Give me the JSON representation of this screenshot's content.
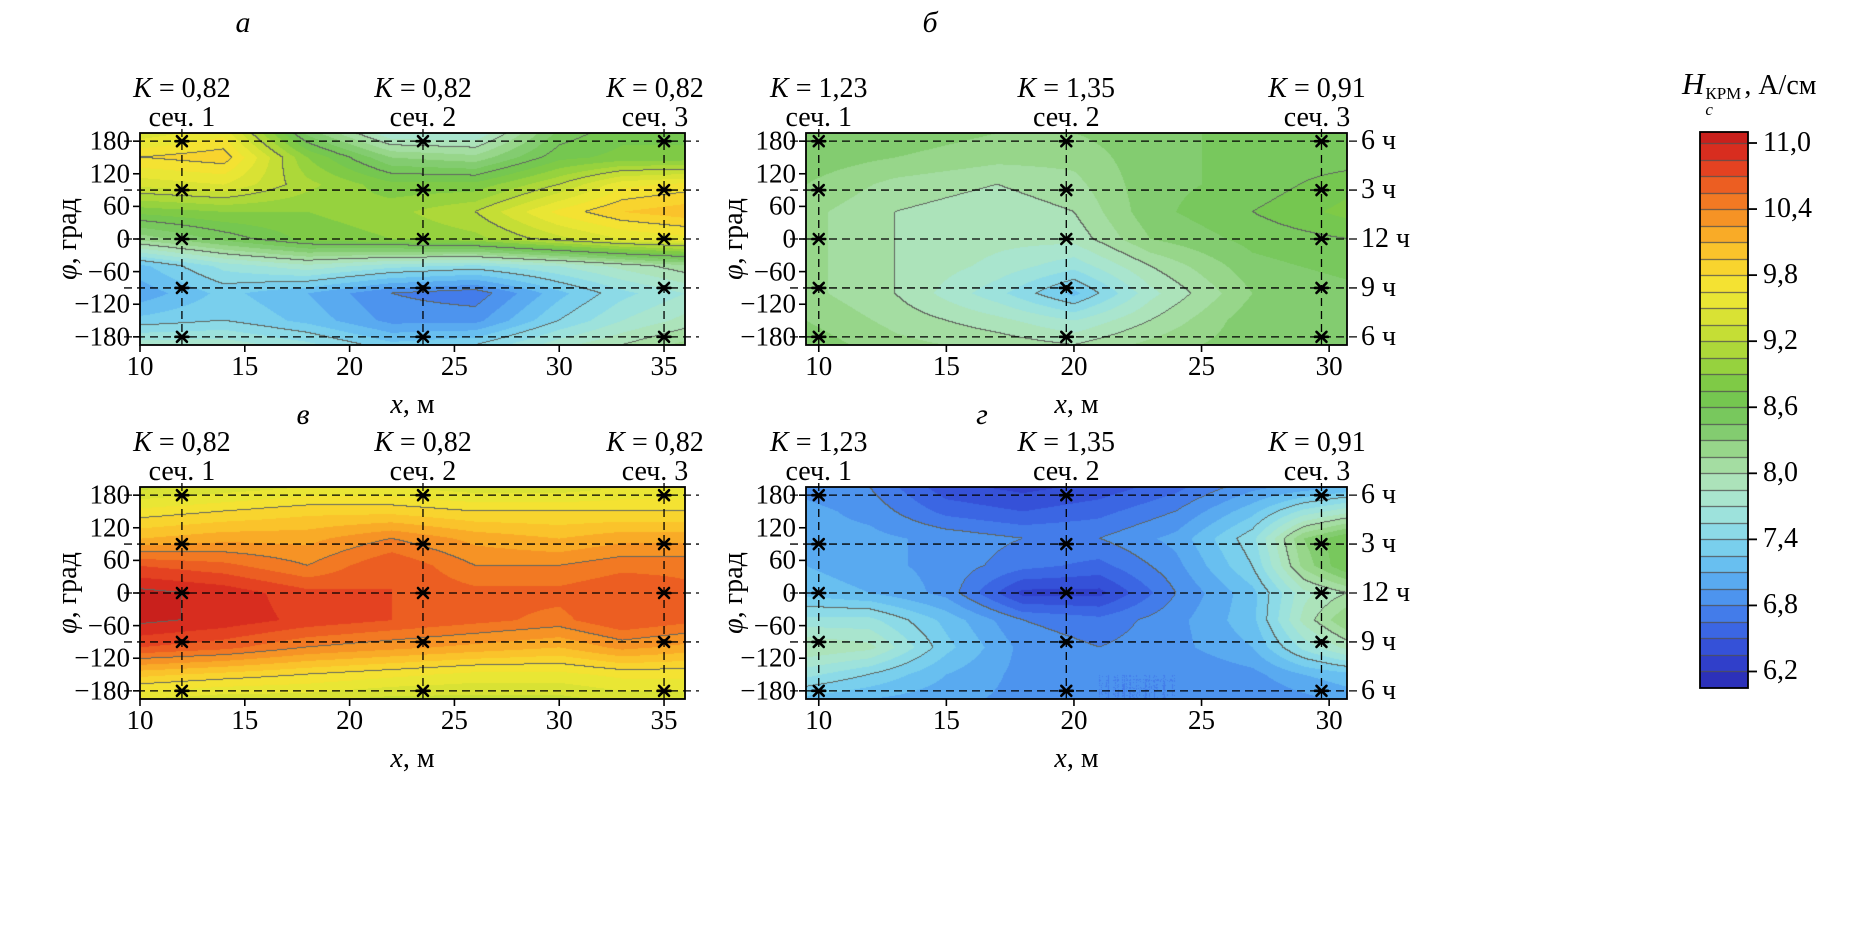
{
  "colorbar": {
    "title": {
      "symbol": "H",
      "sup": "КРМ",
      "sub": "c",
      "units": ", А/см"
    },
    "tick_labels": [
      "11,0",
      "10,4",
      "9,8",
      "9,2",
      "8,6",
      "8,0",
      "7,4",
      "6,8",
      "6,2"
    ],
    "tick_values": [
      11.0,
      10.4,
      9.8,
      9.2,
      8.6,
      8.0,
      7.4,
      6.8,
      6.2
    ],
    "range": [
      6.05,
      11.1
    ],
    "band_step": 0.15,
    "contour_step": 0.6,
    "colormap_stops": [
      [
        6.05,
        [
          42,
          42,
          178
        ]
      ],
      [
        6.35,
        [
          50,
          70,
          210
        ]
      ],
      [
        6.65,
        [
          62,
          112,
          232
        ]
      ],
      [
        6.95,
        [
          82,
          160,
          240
        ]
      ],
      [
        7.25,
        [
          112,
          202,
          240
        ]
      ],
      [
        7.55,
        [
          150,
          224,
          228
        ]
      ],
      [
        7.85,
        [
          176,
          230,
          198
        ]
      ],
      [
        8.15,
        [
          160,
          218,
          150
        ]
      ],
      [
        8.45,
        [
          122,
          200,
          100
        ]
      ],
      [
        8.75,
        [
          116,
          198,
          74
        ]
      ],
      [
        9.05,
        [
          162,
          214,
          58
        ]
      ],
      [
        9.35,
        [
          208,
          224,
          52
        ]
      ],
      [
        9.65,
        [
          242,
          232,
          52
        ]
      ],
      [
        9.95,
        [
          250,
          206,
          44
        ]
      ],
      [
        10.25,
        [
          248,
          160,
          38
        ]
      ],
      [
        10.55,
        [
          240,
          108,
          34
        ]
      ],
      [
        10.85,
        [
          224,
          52,
          32
        ]
      ],
      [
        11.1,
        [
          198,
          30,
          28
        ]
      ]
    ]
  },
  "chart_data": [
    {
      "type": "heatmap",
      "panel_label": "а",
      "xlabel": "x, м",
      "ylabel": "φ, град",
      "x_ticks": [
        10,
        15,
        20,
        25,
        30,
        35
      ],
      "y_ticks": [
        180,
        120,
        60,
        0,
        -60,
        -120,
        -180
      ],
      "x_range": [
        10,
        36
      ],
      "phi_range": [
        -195,
        195
      ],
      "marker_phis": [
        180,
        90,
        0,
        -90,
        -180
      ],
      "hour_labels": [
        "6 ч",
        "3 ч",
        "12 ч",
        "9 ч",
        "6 ч"
      ],
      "show_hour_labels": false,
      "sections": [
        {
          "label": "сеч. 1",
          "k": "K = 0,82",
          "x": 12
        },
        {
          "label": "сеч. 2",
          "k": "K = 0,82",
          "x": 23.5
        },
        {
          "label": "сеч. 3",
          "k": "K = 0,82",
          "x": 35
        }
      ],
      "grid_x": [
        10,
        14,
        18,
        22,
        26,
        30,
        33,
        36
      ],
      "grid_phi": [
        195,
        150,
        100,
        50,
        0,
        -50,
        -100,
        -150,
        -195
      ],
      "values": [
        [
          9.4,
          9.6,
          8.4,
          7.7,
          7.7,
          8.5,
          8.7,
          8.7
        ],
        [
          9.8,
          9.9,
          8.9,
          8.3,
          8.2,
          8.7,
          8.8,
          8.8
        ],
        [
          9.4,
          9.5,
          9.1,
          8.8,
          8.8,
          9.2,
          9.6,
          9.7
        ],
        [
          8.8,
          8.9,
          8.9,
          9.0,
          9.2,
          9.7,
          9.95,
          10.05
        ],
        [
          8.2,
          8.5,
          8.8,
          8.9,
          9.0,
          9.3,
          9.5,
          9.6
        ],
        [
          7.2,
          7.6,
          7.8,
          7.6,
          7.5,
          7.7,
          7.9,
          8.1
        ],
        [
          7.0,
          7.3,
          7.1,
          6.8,
          6.7,
          7.2,
          7.5,
          7.7
        ],
        [
          7.3,
          7.4,
          7.2,
          6.9,
          6.9,
          7.4,
          7.7,
          7.9
        ],
        [
          7.8,
          7.8,
          7.6,
          7.3,
          7.4,
          7.8,
          8.0,
          8.2
        ]
      ]
    },
    {
      "type": "heatmap",
      "panel_label": "б",
      "xlabel": "x, м",
      "ylabel": "φ, град",
      "x_ticks": [
        10,
        15,
        20,
        25,
        30
      ],
      "y_ticks": [
        180,
        120,
        60,
        0,
        -60,
        -120,
        -180
      ],
      "x_range": [
        9.5,
        30.7
      ],
      "phi_range": [
        -195,
        195
      ],
      "marker_phis": [
        180,
        90,
        0,
        -90,
        -180
      ],
      "hour_labels": [
        "6 ч",
        "3 ч",
        "12 ч",
        "9 ч",
        "6 ч"
      ],
      "show_hour_labels": true,
      "sections": [
        {
          "label": "сеч. 1",
          "k": "K = 1,23",
          "x": 10
        },
        {
          "label": "сеч. 2",
          "k": "K = 1,35",
          "x": 19.7
        },
        {
          "label": "сеч. 3",
          "k": "K = 0,91",
          "x": 29.7
        }
      ],
      "grid_x": [
        9.5,
        13,
        17,
        20,
        23,
        27,
        30.7
      ],
      "grid_phi": [
        195,
        150,
        100,
        50,
        0,
        -50,
        -100,
        -150,
        -195
      ],
      "values": [
        [
          8.4,
          8.4,
          8.3,
          8.3,
          8.4,
          8.5,
          8.5
        ],
        [
          8.4,
          8.3,
          8.2,
          8.2,
          8.4,
          8.5,
          8.5
        ],
        [
          8.3,
          8.1,
          8.0,
          8.1,
          8.4,
          8.5,
          8.7
        ],
        [
          8.2,
          8.0,
          7.9,
          8.0,
          8.4,
          8.6,
          8.8
        ],
        [
          8.2,
          8.0,
          7.9,
          7.9,
          8.3,
          8.5,
          8.6
        ],
        [
          8.2,
          8.0,
          7.8,
          7.6,
          8.0,
          8.4,
          8.5
        ],
        [
          8.2,
          8.0,
          7.6,
          7.2,
          7.8,
          8.3,
          8.4
        ],
        [
          8.3,
          8.1,
          7.9,
          7.7,
          8.0,
          8.4,
          8.4
        ],
        [
          8.4,
          8.2,
          8.1,
          8.0,
          8.2,
          8.4,
          8.4
        ]
      ]
    },
    {
      "type": "heatmap",
      "panel_label": "в",
      "xlabel": "x, м",
      "ylabel": "φ, град",
      "x_ticks": [
        10,
        15,
        20,
        25,
        30,
        35
      ],
      "y_ticks": [
        180,
        120,
        60,
        0,
        -60,
        -120,
        -180
      ],
      "x_range": [
        10,
        36
      ],
      "phi_range": [
        -195,
        195
      ],
      "marker_phis": [
        180,
        90,
        0,
        -90,
        -180
      ],
      "hour_labels": [
        "6 ч",
        "3 ч",
        "12 ч",
        "9 ч",
        "6 ч"
      ],
      "show_hour_labels": false,
      "sections": [
        {
          "label": "сеч. 1",
          "k": "K = 0,82",
          "x": 12
        },
        {
          "label": "сеч. 2",
          "k": "K = 0,82",
          "x": 23.5
        },
        {
          "label": "сеч. 3",
          "k": "K = 0,82",
          "x": 35
        }
      ],
      "grid_x": [
        10,
        14,
        18,
        22,
        26,
        30,
        33,
        36
      ],
      "grid_phi": [
        195,
        150,
        100,
        50,
        0,
        -50,
        -100,
        -150,
        -195
      ],
      "values": [
        [
          9.3,
          9.4,
          9.5,
          9.5,
          9.4,
          9.4,
          9.5,
          9.5
        ],
        [
          9.7,
          9.8,
          9.9,
          9.9,
          9.8,
          9.8,
          9.8,
          9.8
        ],
        [
          10.1,
          10.2,
          10.2,
          10.4,
          10.2,
          10.1,
          10.2,
          10.2
        ],
        [
          10.7,
          10.6,
          10.4,
          10.7,
          10.4,
          10.4,
          10.5,
          10.5
        ],
        [
          11.05,
          10.95,
          10.75,
          10.7,
          10.6,
          10.6,
          10.7,
          10.6
        ],
        [
          11.05,
          10.95,
          10.8,
          10.7,
          10.6,
          10.5,
          10.7,
          10.6
        ],
        [
          10.7,
          10.6,
          10.4,
          10.3,
          10.2,
          10.1,
          10.3,
          10.2
        ],
        [
          10.0,
          9.9,
          9.8,
          9.7,
          9.6,
          9.6,
          9.7,
          9.7
        ],
        [
          9.5,
          9.4,
          9.4,
          9.3,
          9.3,
          9.3,
          9.4,
          9.4
        ]
      ]
    },
    {
      "type": "heatmap",
      "panel_label": "г",
      "xlabel": "x, м",
      "ylabel": "φ, град",
      "x_ticks": [
        10,
        15,
        20,
        25,
        30
      ],
      "y_ticks": [
        180,
        120,
        60,
        0,
        -60,
        -120,
        -180
      ],
      "x_range": [
        9.5,
        30.7
      ],
      "phi_range": [
        -195,
        195
      ],
      "marker_phis": [
        180,
        90,
        0,
        -90,
        -180
      ],
      "hour_labels": [
        "6 ч",
        "3 ч",
        "12 ч",
        "9 ч",
        "6 ч"
      ],
      "show_hour_labels": true,
      "sections": [
        {
          "label": "сеч. 1",
          "k": "K = 1,23",
          "x": 10
        },
        {
          "label": "сеч. 2",
          "k": "K = 1,35",
          "x": 19.7
        },
        {
          "label": "сеч. 3",
          "k": "K = 0,91",
          "x": 29.7
        }
      ],
      "grid_x": [
        9.5,
        12,
        15,
        18,
        21,
        24,
        27,
        29,
        30.7
      ],
      "grid_phi": [
        195,
        150,
        100,
        50,
        0,
        -50,
        -100,
        -150,
        -195
      ],
      "values": [
        [
          6.9,
          6.8,
          6.4,
          6.3,
          6.4,
          6.6,
          6.9,
          7.0,
          7.1
        ],
        [
          7.0,
          6.9,
          6.6,
          6.5,
          6.6,
          6.8,
          7.2,
          7.6,
          7.8
        ],
        [
          7.0,
          7.0,
          6.9,
          6.8,
          6.8,
          7.0,
          7.5,
          8.3,
          8.6
        ],
        [
          7.1,
          7.0,
          6.9,
          6.7,
          6.6,
          6.9,
          7.4,
          8.2,
          8.6
        ],
        [
          7.2,
          7.1,
          6.9,
          6.3,
          6.3,
          6.8,
          7.2,
          7.8,
          8.0
        ],
        [
          7.6,
          7.6,
          7.2,
          6.8,
          6.7,
          6.9,
          7.2,
          7.9,
          8.3
        ],
        [
          8.0,
          7.9,
          7.3,
          6.9,
          6.8,
          6.9,
          7.1,
          7.6,
          7.9
        ],
        [
          7.6,
          7.4,
          7.1,
          6.9,
          6.8,
          6.8,
          6.9,
          7.1,
          7.2
        ],
        [
          7.2,
          7.1,
          7.0,
          6.9,
          6.8,
          6.8,
          6.8,
          6.9,
          7.0
        ]
      ]
    }
  ]
}
